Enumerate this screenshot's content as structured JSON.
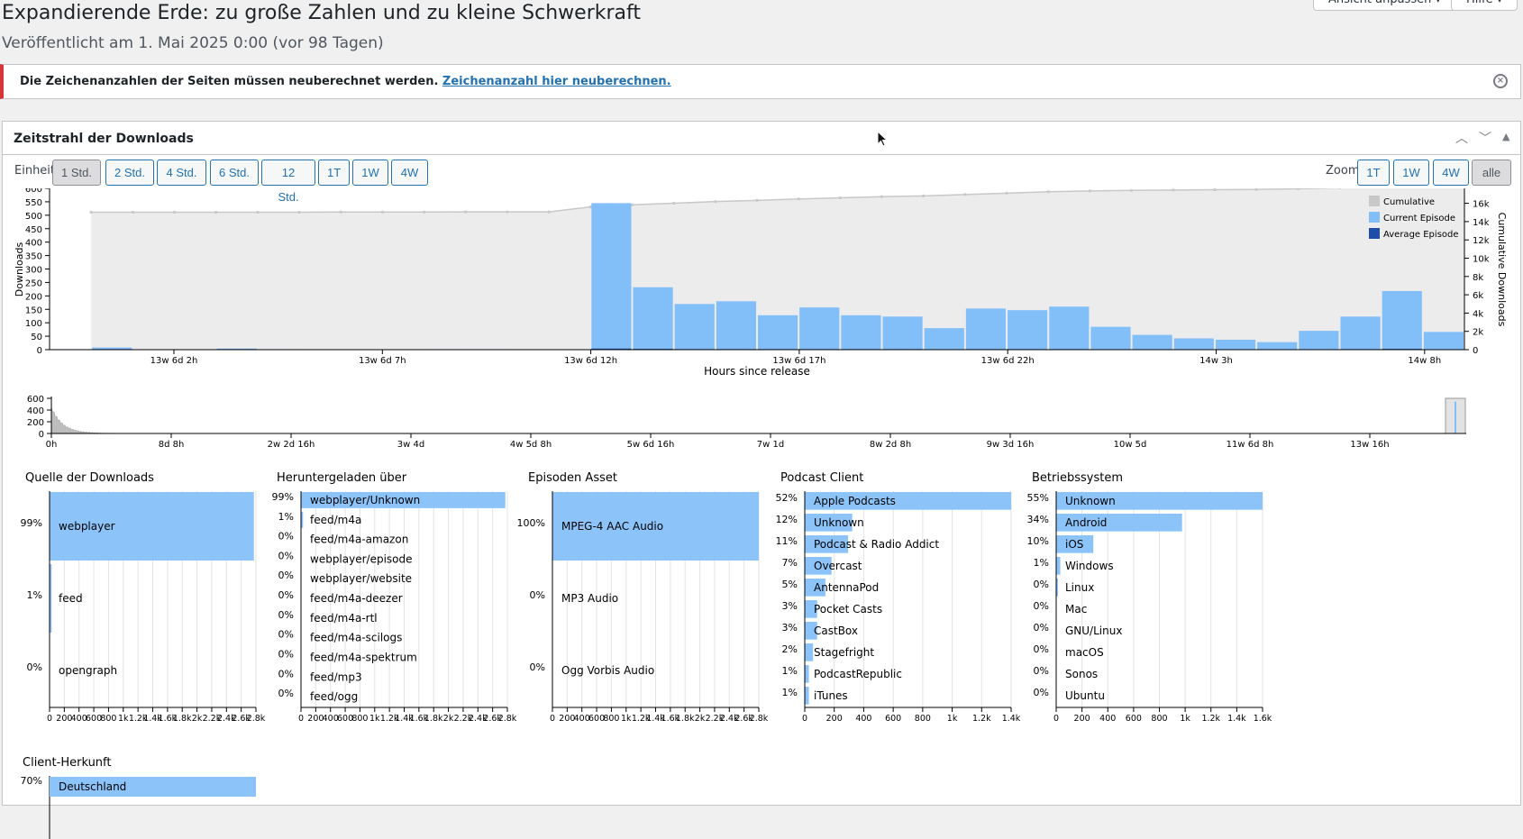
{
  "page": {
    "title": "Expandierende Erde: zu große Zahlen und zu kleine Schwerkraft",
    "subtitle": "Veröffentlicht am 1. Mai 2025 0:00 (vor 98 Tagen)",
    "top_buttons": [
      "Ansicht anpassen ▾",
      "Hilfe ▾"
    ]
  },
  "notice": {
    "text": "Die Zeichenanzahlen der Seiten müssen neuberechnet werden.",
    "link": "Zeichenanzahl hier neuberechnen.",
    "close_icon": "close-circle-icon"
  },
  "panel": {
    "title": "Zeitstrahl der Downloads",
    "unit_label": "Einheit",
    "unit_buttons": [
      "1 Std.",
      "2 Std.",
      "4 Std.",
      "6 Std.",
      "12 Std.",
      "1T",
      "1W",
      "4W"
    ],
    "unit_active": "1 Std.",
    "zoom_label": "Zoom",
    "zoom_buttons": [
      "1T",
      "1W",
      "4W",
      "alle"
    ],
    "zoom_active": "alle",
    "controls": [
      "chevron-up-icon",
      "chevron-down-icon",
      "triangle-up-icon"
    ]
  },
  "colors": {
    "current": "#82bff9",
    "average": "#1f4ea8",
    "cumulative": "#c8c8c8",
    "cumulative_fill": "#ececec",
    "bar_small": "#8cc4fa"
  },
  "chart_data": [
    {
      "type": "bar",
      "name": "timeline",
      "xlabel": "Hours since release",
      "ylabel": "Downloads",
      "y2label": "Cumulative Downloads",
      "y_ticks": [
        0,
        50,
        100,
        150,
        200,
        250,
        300,
        350,
        400,
        450,
        500,
        550,
        600
      ],
      "y2_ticks": [
        "0",
        "2k",
        "4k",
        "6k",
        "8k",
        "10k",
        "12k",
        "14k",
        "16k"
      ],
      "ylim": [
        0,
        600
      ],
      "y2lim": [
        0,
        17600
      ],
      "x_tick_labels": [
        "13w 6d 2h",
        "13w 6d 7h",
        "13w 6d 12h",
        "13w 6d 17h",
        "13w 6d 22h",
        "14w 3h",
        "14w 8h"
      ],
      "legend": [
        "Cumulative",
        "Current Episode",
        "Average Episode"
      ],
      "current_values": [
        2,
        8,
        1,
        1,
        4,
        2,
        1,
        1,
        1,
        2,
        2,
        1,
        1,
        545,
        232,
        170,
        180,
        128,
        157,
        128,
        123,
        80,
        153,
        147,
        160,
        85,
        55,
        42,
        37,
        28,
        70,
        123,
        218,
        66
      ],
      "average_values": [
        1,
        2,
        1,
        1,
        2,
        1,
        1,
        1,
        1,
        1,
        1,
        1,
        1,
        4,
        3,
        2,
        2,
        2,
        2,
        2,
        2,
        1,
        2,
        2,
        2,
        1,
        1,
        1,
        1,
        1,
        1,
        2,
        3,
        1
      ],
      "cumulative_values": [
        15000,
        15000,
        15000,
        15000,
        15000,
        15000,
        15000,
        15020,
        15020,
        15020,
        15030,
        15030,
        15030,
        15575,
        15807,
        15977,
        16157,
        16285,
        16442,
        16570,
        16693,
        16773,
        16926,
        17073,
        17233,
        17318,
        17373,
        17415,
        17452,
        17480,
        17550,
        17673,
        17891,
        17957
      ]
    },
    {
      "type": "area",
      "name": "overview",
      "y_ticks": [
        0,
        200,
        400,
        600
      ],
      "x_tick_labels": [
        "0h",
        "8d 8h",
        "2w 2d 16h",
        "3w 4d",
        "4w 5d 8h",
        "5w 6d 16h",
        "7w 1d",
        "8w 2d 8h",
        "9w 3d 16h",
        "10w 5d",
        "11w 6d 8h",
        "13w 16h"
      ],
      "ylim": [
        0,
        600
      ]
    }
  ],
  "breakdowns": [
    {
      "title": "Quelle der Downloads",
      "rows": [
        {
          "label": "webplayer",
          "pct": "99%",
          "value": 0.99
        },
        {
          "label": "feed",
          "pct": "1%",
          "value": 0.01
        },
        {
          "label": "opengraph",
          "pct": "0%",
          "value": 0
        }
      ],
      "axis": [
        "0",
        "200",
        "400",
        "600",
        "800",
        "1k",
        "1.2k",
        "1.4k",
        "1.6k",
        "1.8k",
        "2k",
        "2.2k",
        "2.4k",
        "2.6k",
        "2.8k"
      ]
    },
    {
      "title": "Heruntergeladen über",
      "rows": [
        {
          "label": "webplayer/Unknown",
          "pct": "99%",
          "value": 0.99
        },
        {
          "label": "feed/m4a",
          "pct": "1%",
          "value": 0.01
        },
        {
          "label": "feed/m4a-amazon",
          "pct": "0%",
          "value": 0
        },
        {
          "label": "webplayer/episode",
          "pct": "0%",
          "value": 0
        },
        {
          "label": "webplayer/website",
          "pct": "0%",
          "value": 0
        },
        {
          "label": "feed/m4a-deezer",
          "pct": "0%",
          "value": 0
        },
        {
          "label": "feed/m4a-rtl",
          "pct": "0%",
          "value": 0
        },
        {
          "label": "feed/m4a-scilogs",
          "pct": "0%",
          "value": 0
        },
        {
          "label": "feed/m4a-spektrum",
          "pct": "0%",
          "value": 0
        },
        {
          "label": "feed/mp3",
          "pct": "0%",
          "value": 0
        },
        {
          "label": "feed/ogg",
          "pct": "0%",
          "value": 0
        }
      ],
      "axis": [
        "0",
        "200",
        "400",
        "600",
        "800",
        "1k",
        "1.2k",
        "1.4k",
        "1.6k",
        "1.8k",
        "2k",
        "2.2k",
        "2.4k",
        "2.6k",
        "2.8k"
      ]
    },
    {
      "title": "Episoden Asset",
      "rows": [
        {
          "label": "MPEG-4 AAC Audio",
          "pct": "100%",
          "value": 1.0
        },
        {
          "label": "MP3 Audio",
          "pct": "0%",
          "value": 0
        },
        {
          "label": "Ogg Vorbis Audio",
          "pct": "0%",
          "value": 0
        }
      ],
      "axis": [
        "0",
        "200",
        "400",
        "600",
        "800",
        "1k",
        "1.2k",
        "1.4k",
        "1.6k",
        "1.8k",
        "2k",
        "2.2k",
        "2.4k",
        "2.6k",
        "2.8k"
      ]
    },
    {
      "title": "Podcast Client",
      "rows": [
        {
          "label": "Apple Podcasts",
          "pct": "52%",
          "value": 1.0
        },
        {
          "label": "Unknown",
          "pct": "12%",
          "value": 0.23
        },
        {
          "label": "Podcast & Radio Addict",
          "pct": "11%",
          "value": 0.21
        },
        {
          "label": "Overcast",
          "pct": "7%",
          "value": 0.13
        },
        {
          "label": "AntennaPod",
          "pct": "5%",
          "value": 0.1
        },
        {
          "label": "Pocket Casts",
          "pct": "3%",
          "value": 0.06
        },
        {
          "label": "CastBox",
          "pct": "3%",
          "value": 0.06
        },
        {
          "label": "Stagefright",
          "pct": "2%",
          "value": 0.04
        },
        {
          "label": "PodcastRepublic",
          "pct": "1%",
          "value": 0.02
        },
        {
          "label": "iTunes",
          "pct": "1%",
          "value": 0.02
        }
      ],
      "axis": [
        "0",
        "200",
        "400",
        "600",
        "800",
        "1k",
        "1.2k",
        "1.4k"
      ]
    },
    {
      "title": "Betriebssystem",
      "rows": [
        {
          "label": "Unknown",
          "pct": "55%",
          "value": 1.0
        },
        {
          "label": "Android",
          "pct": "34%",
          "value": 0.61
        },
        {
          "label": "iOS",
          "pct": "10%",
          "value": 0.18
        },
        {
          "label": "Windows",
          "pct": "1%",
          "value": 0.02
        },
        {
          "label": "Linux",
          "pct": "0%",
          "value": 0.005
        },
        {
          "label": "Mac",
          "pct": "0%",
          "value": 0
        },
        {
          "label": "GNU/Linux",
          "pct": "0%",
          "value": 0
        },
        {
          "label": "macOS",
          "pct": "0%",
          "value": 0
        },
        {
          "label": "Sonos",
          "pct": "0%",
          "value": 0
        },
        {
          "label": "Ubuntu",
          "pct": "0%",
          "value": 0
        }
      ],
      "axis": [
        "0",
        "200",
        "400",
        "600",
        "800",
        "1k",
        "1.2k",
        "1.4k",
        "1.6k"
      ]
    }
  ],
  "origin": {
    "title": "Client-Herkunft",
    "rows": [
      {
        "label": "Deutschland",
        "pct": "70%",
        "value": 1.0
      }
    ]
  }
}
